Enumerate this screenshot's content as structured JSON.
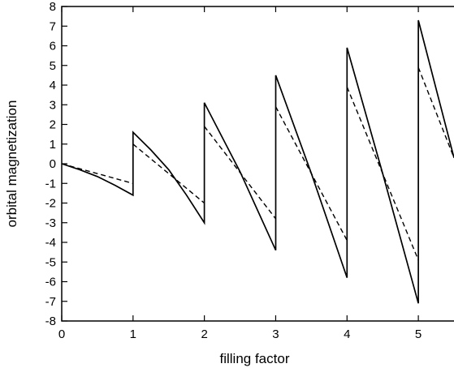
{
  "chart_data": {
    "type": "line",
    "title": "",
    "xlabel": "filling factor",
    "ylabel": "orbital magnetization",
    "xlim": [
      0,
      5.5
    ],
    "ylim": [
      -8,
      8
    ],
    "x_ticks": [
      "0",
      "1",
      "2",
      "3",
      "4",
      "5"
    ],
    "y_ticks": [
      "-8",
      "-7",
      "-6",
      "-5",
      "-4",
      "-3",
      "-2",
      "-1",
      "0",
      "1",
      "2",
      "3",
      "4",
      "5",
      "6",
      "7",
      "8"
    ],
    "grid": false,
    "legend": "none",
    "series": [
      {
        "style": "solid",
        "color": "#000000",
        "segments": [
          [
            [
              0,
              0
            ],
            [
              0.25,
              -0.3
            ],
            [
              0.5,
              -0.65
            ],
            [
              0.75,
              -1.1
            ],
            [
              1.0,
              -1.6
            ]
          ],
          [
            [
              1.0,
              1.6
            ],
            [
              1.25,
              0.7
            ],
            [
              1.5,
              -0.3
            ],
            [
              1.75,
              -1.6
            ],
            [
              2.0,
              -3.0
            ]
          ],
          [
            [
              2.0,
              3.1
            ],
            [
              2.5,
              -0.4
            ],
            [
              3.0,
              -4.4
            ]
          ],
          [
            [
              3.0,
              4.5
            ],
            [
              3.5,
              -0.5
            ],
            [
              4.0,
              -5.8
            ]
          ],
          [
            [
              4.0,
              5.9
            ],
            [
              4.5,
              -0.5
            ],
            [
              5.0,
              -7.1
            ]
          ],
          [
            [
              5.0,
              7.3
            ],
            [
              5.5,
              0.3
            ]
          ]
        ]
      },
      {
        "style": "dashed",
        "color": "#000000",
        "segments": [
          [
            [
              0,
              0
            ],
            [
              1.0,
              -1.0
            ]
          ],
          [
            [
              1.0,
              1.0
            ],
            [
              2.0,
              -2.0
            ]
          ],
          [
            [
              2.0,
              1.9
            ],
            [
              3.0,
              -2.8
            ]
          ],
          [
            [
              3.0,
              2.9
            ],
            [
              4.0,
              -3.9
            ]
          ],
          [
            [
              4.0,
              3.9
            ],
            [
              5.0,
              -4.9
            ]
          ],
          [
            [
              5.0,
              4.9
            ],
            [
              5.5,
              0.3
            ]
          ]
        ]
      }
    ]
  }
}
